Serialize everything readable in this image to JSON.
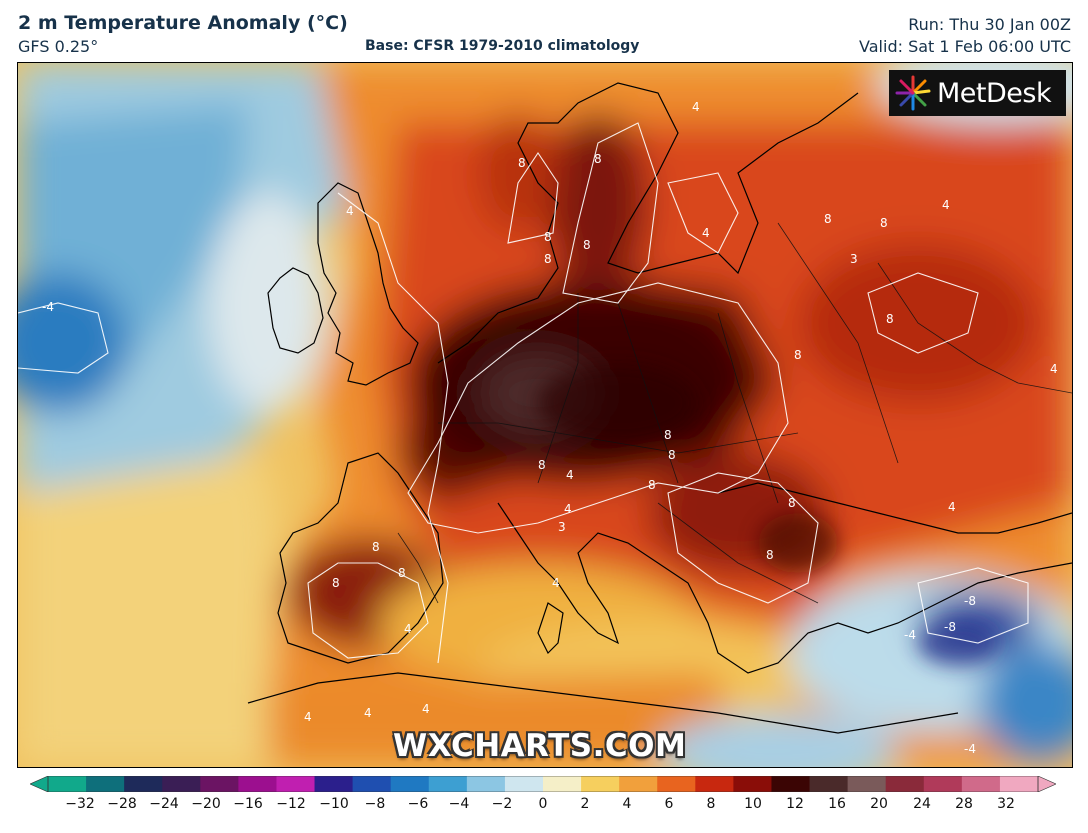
{
  "header": {
    "title": "2 m Temperature Anomaly (°C)",
    "model": "GFS 0.25°",
    "base": "Base: CFSR 1979-2010 climatology",
    "run": "Run: Thu 30 Jan 00Z",
    "valid": "Valid: Sat 1 Feb 06:00 UTC"
  },
  "logo": {
    "text": "MetDesk",
    "icon": "metdesk-burst-icon"
  },
  "watermark": "WXCHARTS.COM",
  "contour_labels": [
    "8",
    "8",
    "8",
    "8",
    "8",
    "8",
    "8",
    "8",
    "8",
    "8",
    "8",
    "8",
    "8",
    "8",
    "8",
    "8",
    "8",
    "8",
    "4",
    "4",
    "4",
    "4",
    "4",
    "4",
    "4",
    "4",
    "4",
    "4",
    "4",
    "4",
    "-4",
    "-4",
    "-4",
    "-8",
    "-8",
    "3",
    "3",
    "4"
  ],
  "colorbar": {
    "min": -32,
    "max": 32,
    "tick_labels": [
      "−32",
      "−28",
      "−24",
      "−20",
      "−16",
      "−12",
      "−10",
      "−8",
      "−6",
      "−4",
      "−2",
      "0",
      "2",
      "4",
      "6",
      "8",
      "10",
      "12",
      "16",
      "20",
      "24",
      "28",
      "32"
    ],
    "colors": [
      "#11a98b",
      "#0e6f7b",
      "#1e2a5a",
      "#3a1e55",
      "#6b1463",
      "#9c0f8f",
      "#c01fb0",
      "#2b1f8c",
      "#1f4fb0",
      "#1f79c2",
      "#3d9fd2",
      "#8cc6e3",
      "#cfe6ef",
      "#f5efc8",
      "#f6cf5e",
      "#f1a03c",
      "#e8641f",
      "#c8280f",
      "#8a0d08",
      "#3b0504",
      "#4a2a2a",
      "#7a5a5a",
      "#8a2a3a",
      "#b03a5a",
      "#d06a8a",
      "#f0a8c0"
    ]
  },
  "colors": {
    "title_text": "#17324a",
    "anomaly_hot": "#3b0504",
    "anomaly_cold": "#1f79c2",
    "ocean_neutral": "#f2d48a"
  }
}
